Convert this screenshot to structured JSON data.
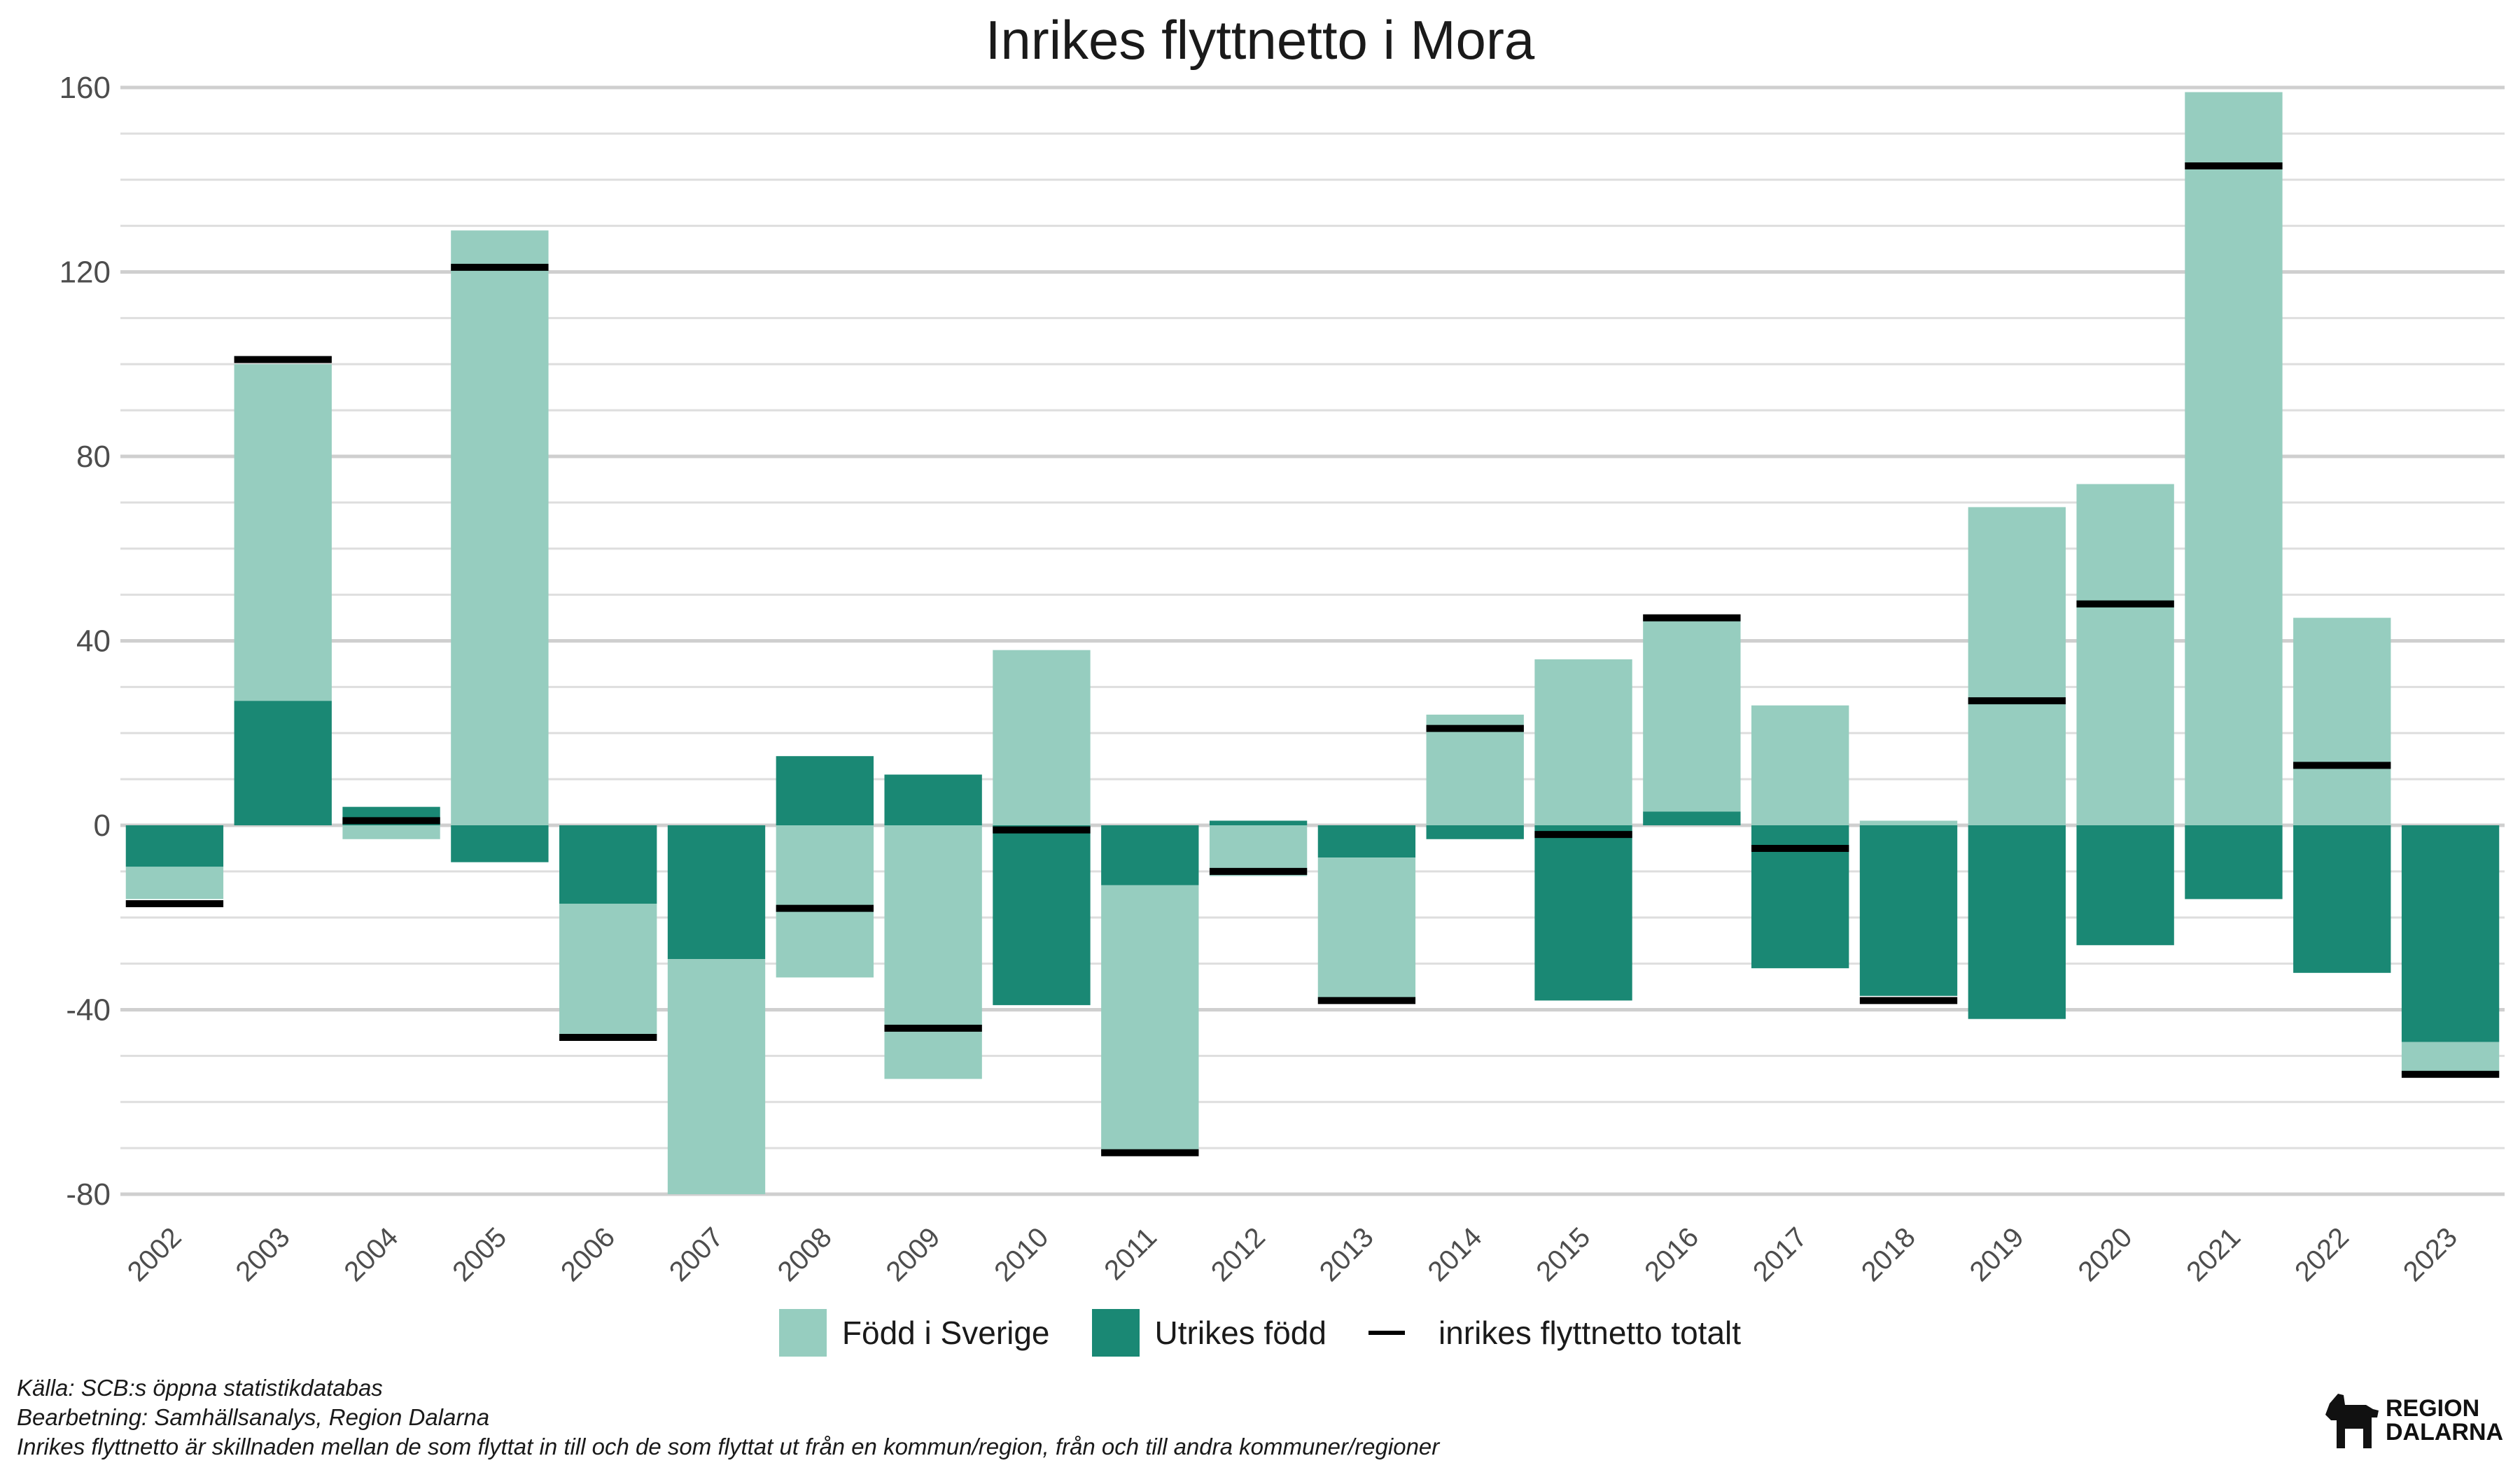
{
  "chart_data": {
    "type": "bar",
    "title": "Inrikes flyttnetto i Mora",
    "xlabel": "",
    "ylabel": "",
    "ylim": [
      -80,
      160
    ],
    "yticks": [
      160,
      120,
      80,
      40,
      0,
      -40,
      -80
    ],
    "categories": [
      "2002",
      "2003",
      "2004",
      "2005",
      "2006",
      "2007",
      "2008",
      "2009",
      "2010",
      "2011",
      "2012",
      "2013",
      "2014",
      "2015",
      "2016",
      "2017",
      "2018",
      "2019",
      "2020",
      "2021",
      "2022",
      "2023"
    ],
    "series": [
      {
        "name": "Född i Sverige",
        "color": "#96CDBF",
        "values": [
          -7,
          73,
          -3,
          129,
          -29,
          -52,
          -33,
          -55,
          38,
          -58,
          -11,
          -31,
          24,
          36,
          42,
          26,
          1,
          69,
          74,
          159,
          45,
          -7
        ]
      },
      {
        "name": "Utrikes född",
        "color": "#1A8874",
        "values": [
          -9,
          27,
          4,
          -8,
          -17,
          -29,
          15,
          11,
          -39,
          -13,
          1,
          -7,
          -3,
          -38,
          3,
          -31,
          -37,
          -42,
          -26,
          -16,
          -32,
          -47
        ]
      },
      {
        "name": "inrikes flyttnetto totalt",
        "color": "#000000",
        "type": "line-marker",
        "values": [
          -17,
          101,
          1,
          121,
          -46,
          -81,
          -18,
          -44,
          -1,
          -71,
          -10,
          -38,
          21,
          -2,
          45,
          -5,
          -38,
          27,
          48,
          143,
          13,
          -54
        ]
      }
    ],
    "grid": true,
    "legend_position": "bottom"
  },
  "legend": {
    "fodd": "Född i Sverige",
    "utrikes": "Utrikes född",
    "totalt": "inrikes flyttnetto totalt"
  },
  "captions": {
    "line1": "Källa: SCB:s öppna statistikdatabas",
    "line2": "Bearbetning: Samhällsanalys, Region Dalarna",
    "line3": "Inrikes flyttnetto är skillnaden mellan de som flyttat in till och de som flyttat ut från en kommun/region, från och till andra kommuner/regioner"
  },
  "logo": {
    "line1": "REGION",
    "line2": "DALARNA",
    "icon": "dalahorse-icon"
  }
}
